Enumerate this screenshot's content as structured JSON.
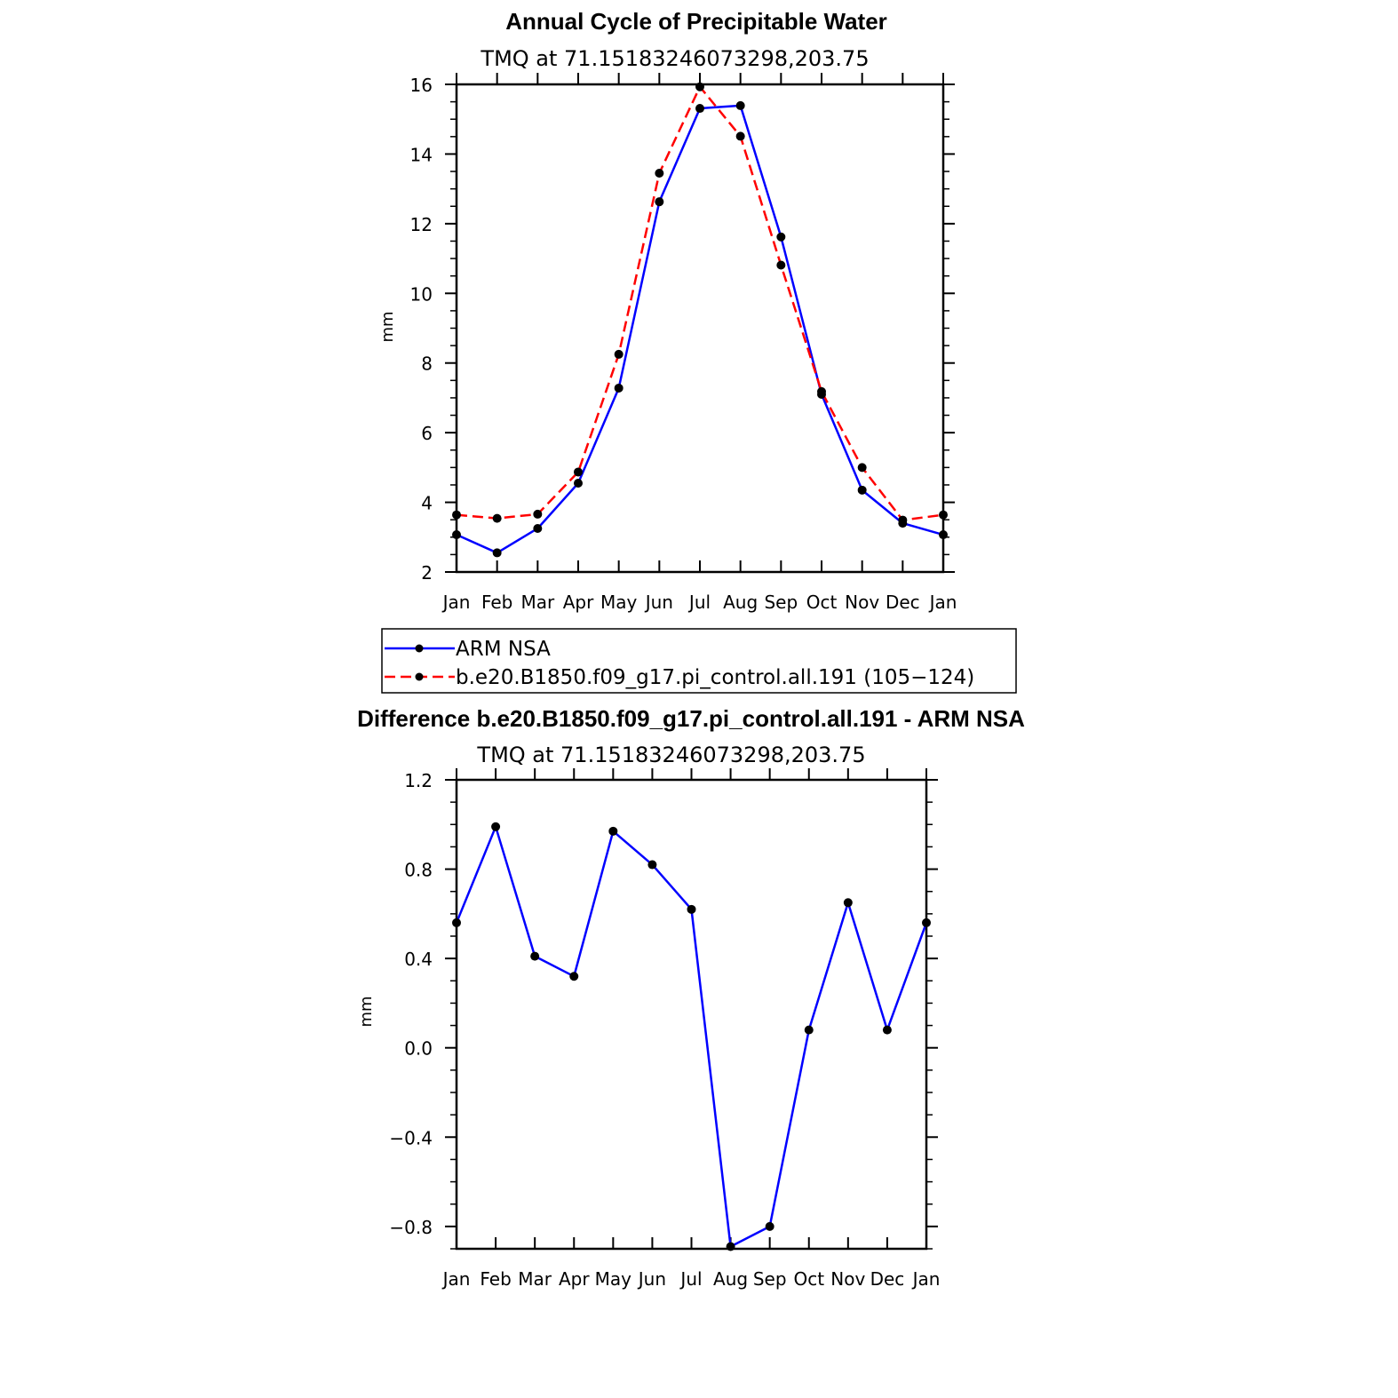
{
  "chart_data": [
    {
      "type": "line",
      "title": "Annual Cycle of Precipitable Water",
      "subtitle": "TMQ at 71.15183246073298,203.75",
      "ylabel": "mm",
      "xlabel": "",
      "categories": [
        "Jan",
        "Feb",
        "Mar",
        "Apr",
        "May",
        "Jun",
        "Jul",
        "Aug",
        "Sep",
        "Oct",
        "Nov",
        "Dec",
        "Jan"
      ],
      "ylim": [
        2,
        16
      ],
      "yticks": [
        2,
        4,
        6,
        8,
        10,
        12,
        14,
        16
      ],
      "ytick_labels": [
        "2",
        "4",
        "6",
        "8",
        "10",
        "12",
        "14",
        "16"
      ],
      "grid": false,
      "legend_position": "bottom",
      "series": [
        {
          "name": "ARM NSA",
          "color": "#0000ff",
          "dash": "solid",
          "values": [
            3.07,
            2.55,
            3.25,
            4.55,
            7.28,
            12.63,
            15.31,
            15.39,
            11.62,
            7.1,
            4.35,
            3.4,
            3.07
          ]
        },
        {
          "name": "b.e20.B1850.f09_g17.pi_control.all.191 (105−124)",
          "color": "#ff0000",
          "dash": "dashed",
          "values": [
            3.64,
            3.54,
            3.66,
            4.87,
            8.25,
            13.45,
            15.93,
            14.51,
            10.81,
            7.18,
            5.0,
            3.49,
            3.64
          ]
        }
      ]
    },
    {
      "type": "line",
      "title": "Difference b.e20.B1850.f09_g17.pi_control.all.191 - ARM NSA",
      "subtitle": "TMQ at 71.15183246073298,203.75",
      "ylabel": "mm",
      "xlabel": "",
      "categories": [
        "Jan",
        "Feb",
        "Mar",
        "Apr",
        "May",
        "Jun",
        "Jul",
        "Aug",
        "Sep",
        "Oct",
        "Nov",
        "Dec",
        "Jan"
      ],
      "ylim": [
        -0.9,
        1.2
      ],
      "yticks": [
        -0.8,
        -0.4,
        0.0,
        0.4,
        0.8,
        1.2
      ],
      "ytick_labels": [
        "−0.8",
        "−0.4",
        "0.0",
        "0.4",
        "0.8",
        "1.2"
      ],
      "grid": false,
      "series": [
        {
          "color": "#0000ff",
          "dash": "solid",
          "values": [
            0.56,
            0.99,
            0.41,
            0.32,
            0.97,
            0.82,
            0.62,
            -0.89,
            -0.8,
            0.08,
            0.65,
            0.08,
            0.56
          ]
        }
      ]
    }
  ]
}
